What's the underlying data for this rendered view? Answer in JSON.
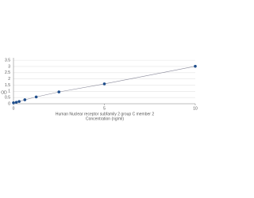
{
  "chart_data": {
    "type": "scatter",
    "ylabel": "OD",
    "xlabel": [
      "Human Nuclear receptor subfamily 2 group C member 2",
      "Concentration (ng/ml)"
    ],
    "series": [
      {
        "x": [
          0,
          0.156,
          0.312,
          0.625,
          1.25,
          2.5,
          5,
          10
        ],
        "values": [
          0.08,
          0.12,
          0.18,
          0.32,
          0.55,
          0.95,
          1.6,
          3.02
        ],
        "color": "#1f4e8c",
        "line_color": "#8a8a9a"
      }
    ],
    "xlim": [
      0,
      10
    ],
    "ylim": [
      0,
      3.7
    ],
    "xticks": [
      0,
      5,
      10
    ],
    "yticks": [
      0,
      0.5,
      1,
      1.5,
      2,
      2.5,
      3,
      3.5
    ],
    "grid": true
  }
}
